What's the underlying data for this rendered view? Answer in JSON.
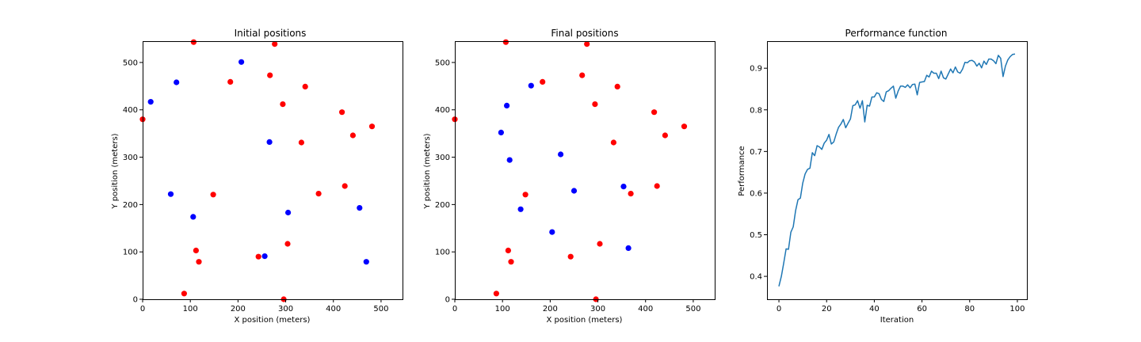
{
  "colors": {
    "red": "#ff0000",
    "blue": "#0000ff",
    "line": "#1f77b4"
  },
  "chart_data": [
    {
      "type": "scatter",
      "title": "Initial positions",
      "xlabel": "X position (meters)",
      "ylabel": "Y position (meters)",
      "xlim": [
        0,
        545
      ],
      "ylim": [
        0,
        545
      ],
      "xticks": [
        0,
        100,
        200,
        300,
        400,
        500
      ],
      "yticks": [
        0,
        100,
        200,
        300,
        400,
        500
      ],
      "grid": false,
      "series": [
        {
          "color": "red",
          "points": [
            [
              107,
              543
            ],
            [
              277,
              539
            ],
            [
              267,
              473
            ],
            [
              184,
              459
            ],
            [
              341,
              449
            ],
            [
              294,
              412
            ],
            [
              0,
              380
            ],
            [
              418,
              395
            ],
            [
              481,
              365
            ],
            [
              441,
              346
            ],
            [
              333,
              331
            ],
            [
              148,
              221
            ],
            [
              369,
              223
            ],
            [
              424,
              239
            ],
            [
              112,
              103
            ],
            [
              118,
              79
            ],
            [
              304,
              117
            ],
            [
              243,
              90
            ],
            [
              87,
              12
            ],
            [
              296,
              0
            ]
          ]
        },
        {
          "color": "blue",
          "points": [
            [
              207,
              501
            ],
            [
              71,
              458
            ],
            [
              17,
              417
            ],
            [
              266,
              332
            ],
            [
              59,
              222
            ],
            [
              106,
              174
            ],
            [
              305,
              183
            ],
            [
              455,
              193
            ],
            [
              256,
              91
            ],
            [
              469,
              79
            ]
          ]
        }
      ]
    },
    {
      "type": "scatter",
      "title": "Final positions",
      "xlabel": "X position (meters)",
      "ylabel": "Y position (meters)",
      "xlim": [
        0,
        545
      ],
      "ylim": [
        0,
        545
      ],
      "xticks": [
        0,
        100,
        200,
        300,
        400,
        500
      ],
      "yticks": [
        0,
        100,
        200,
        300,
        400,
        500
      ],
      "grid": false,
      "series": [
        {
          "color": "red",
          "points": [
            [
              107,
              543
            ],
            [
              277,
              539
            ],
            [
              267,
              473
            ],
            [
              184,
              459
            ],
            [
              341,
              449
            ],
            [
              294,
              412
            ],
            [
              0,
              380
            ],
            [
              418,
              395
            ],
            [
              481,
              365
            ],
            [
              441,
              346
            ],
            [
              333,
              331
            ],
            [
              148,
              221
            ],
            [
              369,
              223
            ],
            [
              424,
              239
            ],
            [
              112,
              103
            ],
            [
              118,
              79
            ],
            [
              304,
              117
            ],
            [
              243,
              90
            ],
            [
              87,
              12
            ],
            [
              296,
              0
            ]
          ]
        },
        {
          "color": "blue",
          "points": [
            [
              160,
              451
            ],
            [
              109,
              409
            ],
            [
              97,
              352
            ],
            [
              115,
              294
            ],
            [
              222,
              306
            ],
            [
              138,
              190
            ],
            [
              250,
              229
            ],
            [
              354,
              238
            ],
            [
              204,
              142
            ],
            [
              364,
              108
            ]
          ]
        }
      ]
    },
    {
      "type": "line",
      "title": "Performance function",
      "xlabel": "Iteration",
      "ylabel": "Performance",
      "xlim": [
        -5,
        104
      ],
      "ylim": [
        0.345,
        0.965
      ],
      "xticks": [
        0,
        20,
        40,
        60,
        80,
        100
      ],
      "yticks": [
        0.4,
        0.5,
        0.6,
        0.7,
        0.8,
        0.9
      ],
      "ytick_labels": [
        "0.4",
        "0.5",
        "0.6",
        "0.7",
        "0.8",
        "0.9"
      ],
      "grid": false,
      "series": [
        {
          "color": "line",
          "values": [
            0.376,
            0.4,
            0.432,
            0.466,
            0.465,
            0.506,
            0.519,
            0.558,
            0.584,
            0.588,
            0.624,
            0.646,
            0.657,
            0.66,
            0.697,
            0.69,
            0.714,
            0.711,
            0.705,
            0.72,
            0.727,
            0.741,
            0.718,
            0.723,
            0.742,
            0.758,
            0.766,
            0.777,
            0.757,
            0.768,
            0.778,
            0.81,
            0.812,
            0.822,
            0.804,
            0.822,
            0.771,
            0.811,
            0.809,
            0.831,
            0.831,
            0.841,
            0.839,
            0.825,
            0.82,
            0.843,
            0.846,
            0.852,
            0.857,
            0.828,
            0.845,
            0.857,
            0.857,
            0.854,
            0.86,
            0.853,
            0.861,
            0.862,
            0.836,
            0.866,
            0.867,
            0.868,
            0.883,
            0.879,
            0.893,
            0.888,
            0.888,
            0.875,
            0.893,
            0.877,
            0.874,
            0.886,
            0.898,
            0.889,
            0.903,
            0.891,
            0.888,
            0.898,
            0.914,
            0.913,
            0.918,
            0.919,
            0.915,
            0.905,
            0.912,
            0.901,
            0.917,
            0.909,
            0.922,
            0.922,
            0.918,
            0.911,
            0.931,
            0.924,
            0.88,
            0.905,
            0.92,
            0.928,
            0.933,
            0.934
          ]
        }
      ]
    }
  ]
}
